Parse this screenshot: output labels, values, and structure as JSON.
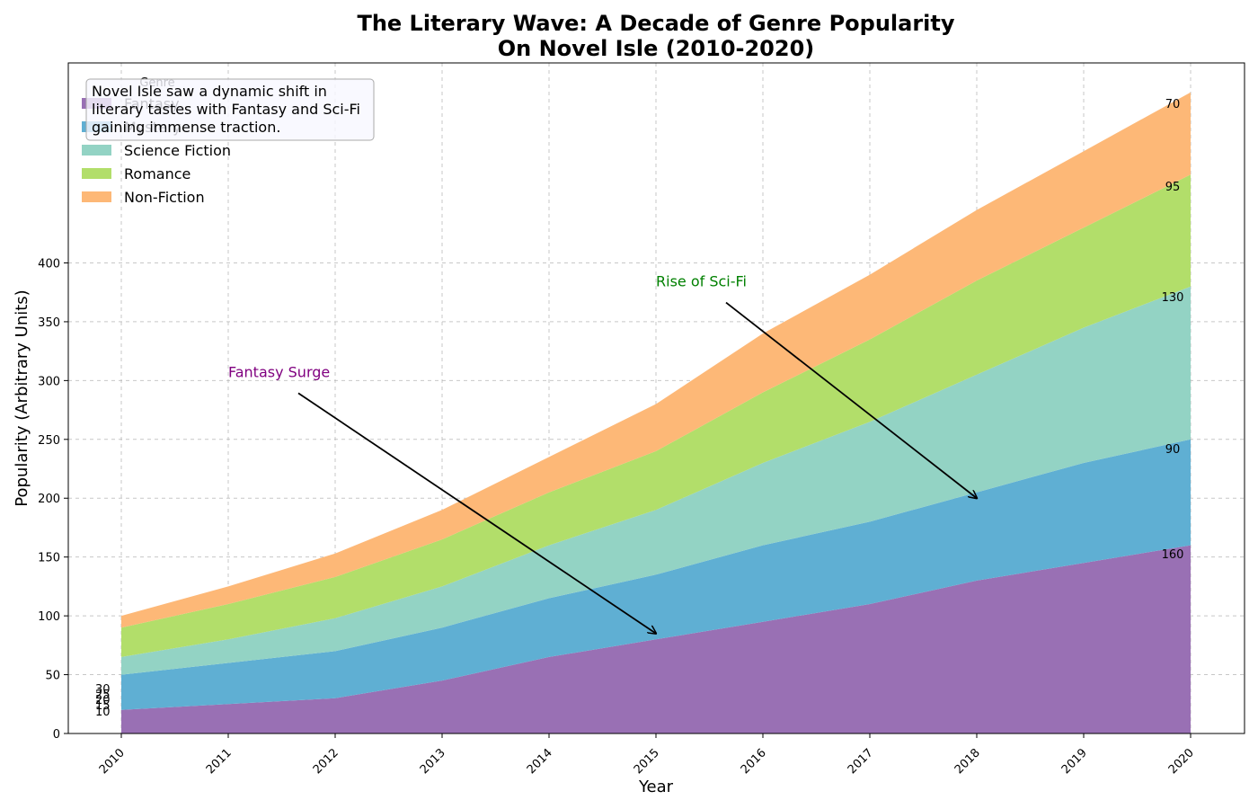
{
  "chart_data": {
    "type": "area",
    "stacked": true,
    "title_line1": "The Literary Wave: A Decade of Genre Popularity",
    "title_line2": "On Novel Isle (2010-2020)",
    "xlabel": "Year",
    "ylabel": "Popularity (Arbitrary Units)",
    "x": [
      "2010",
      "2011",
      "2012",
      "2013",
      "2014",
      "2015",
      "2016",
      "2017",
      "2018",
      "2019",
      "2020"
    ],
    "ylim": [
      0,
      570
    ],
    "yticks": [
      0,
      50,
      100,
      150,
      200,
      250,
      300,
      350,
      400
    ],
    "grid": true,
    "series": [
      {
        "name": "Fantasy",
        "color": "#9970b4",
        "values": [
          20,
          25,
          30,
          45,
          65,
          80,
          95,
          110,
          130,
          145,
          160
        ]
      },
      {
        "name": "Mystery",
        "color": "#5fafd3",
        "values": [
          30,
          35,
          40,
          45,
          50,
          55,
          65,
          70,
          75,
          85,
          90
        ]
      },
      {
        "name": "Science Fiction",
        "color": "#93d3c4",
        "values": [
          15,
          20,
          28,
          35,
          45,
          55,
          70,
          85,
          100,
          115,
          130
        ]
      },
      {
        "name": "Romance",
        "color": "#b2de6a",
        "values": [
          25,
          30,
          35,
          40,
          45,
          50,
          60,
          70,
          80,
          85,
          95
        ]
      },
      {
        "name": "Non-Fiction",
        "color": "#fdb877",
        "values": [
          10,
          15,
          20,
          25,
          30,
          40,
          50,
          55,
          60,
          65,
          70
        ]
      }
    ],
    "start_labels": [
      "30",
      "25",
      "20",
      "15",
      "10"
    ],
    "end_labels": [
      "70",
      "95",
      "130",
      "90",
      "160"
    ],
    "legend": {
      "title": "Genre",
      "placement": "top-left"
    },
    "note_lines": [
      "Novel Isle saw a dynamic shift in",
      "literary tastes with Fantasy and Sci-Fi",
      "gaining immense traction."
    ],
    "annotations": [
      {
        "text": "Fantasy Surge",
        "color": "#800080",
        "text_x": 2011,
        "text_y": 300,
        "target_x": 2015,
        "target_y": 85
      },
      {
        "text": "Rise of Sci-Fi",
        "color": "#008000",
        "text_x": 2015,
        "text_y": 377,
        "target_x": 2018,
        "target_y": 200
      }
    ]
  }
}
